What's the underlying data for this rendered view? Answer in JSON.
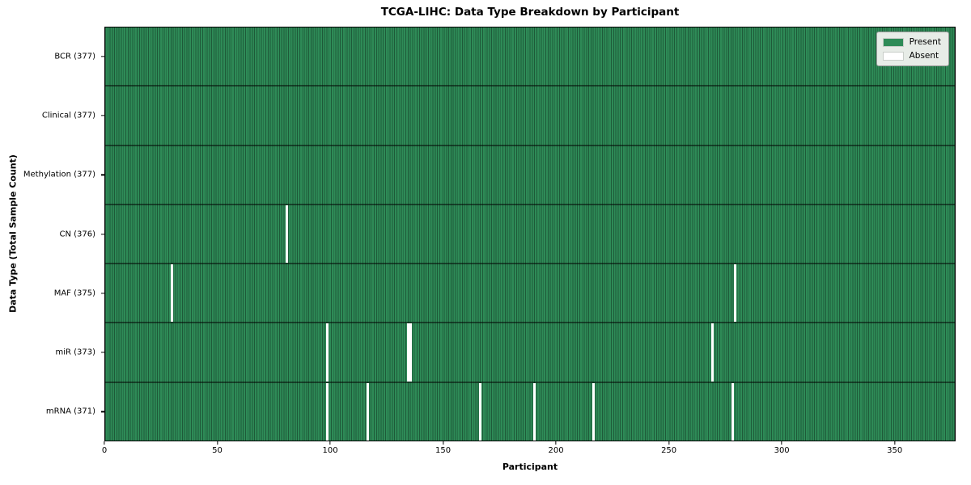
{
  "chart_data": {
    "type": "heatmap",
    "title": "TCGA-LIHC: Data Type Breakdown by Participant",
    "xlabel": "Participant",
    "ylabel": "Data Type (Total Sample Count)",
    "xlim": [
      0,
      377
    ],
    "x_ticks": [
      0,
      50,
      100,
      150,
      200,
      250,
      300,
      350
    ],
    "total_participants": 377,
    "legend_position": "upper right",
    "grid": "per-participant vertical grid lines",
    "rows": [
      {
        "name": "BCR",
        "count": 377,
        "label": "BCR (377)",
        "absent": []
      },
      {
        "name": "Clinical",
        "count": 377,
        "label": "Clinical (377)",
        "absent": []
      },
      {
        "name": "Methylation",
        "count": 377,
        "label": "Methylation (377)",
        "absent": []
      },
      {
        "name": "CN",
        "count": 376,
        "label": "CN (376)",
        "absent": [
          80
        ]
      },
      {
        "name": "MAF",
        "count": 375,
        "label": "MAF (375)",
        "absent": [
          29,
          279
        ]
      },
      {
        "name": "miR",
        "count": 373,
        "label": "miR (373)",
        "absent": [
          98,
          134,
          135,
          269
        ]
      },
      {
        "name": "mRNA",
        "count": 371,
        "label": "mRNA (371)",
        "absent": [
          98,
          116,
          166,
          190,
          216,
          278
        ]
      }
    ],
    "legend": [
      {
        "label": "Present",
        "color": "#2e8b57"
      },
      {
        "label": "Absent",
        "color": "#ffffff"
      }
    ],
    "colors": {
      "present": "#2e8b57",
      "absent": "#ffffff",
      "grid_line": "rgba(0,0,0,0.35)",
      "row_divider": "rgba(0,0,0,0.5)",
      "spine": "#000000",
      "legend_bg": "#e7ece7",
      "legend_border": "#999999"
    }
  }
}
